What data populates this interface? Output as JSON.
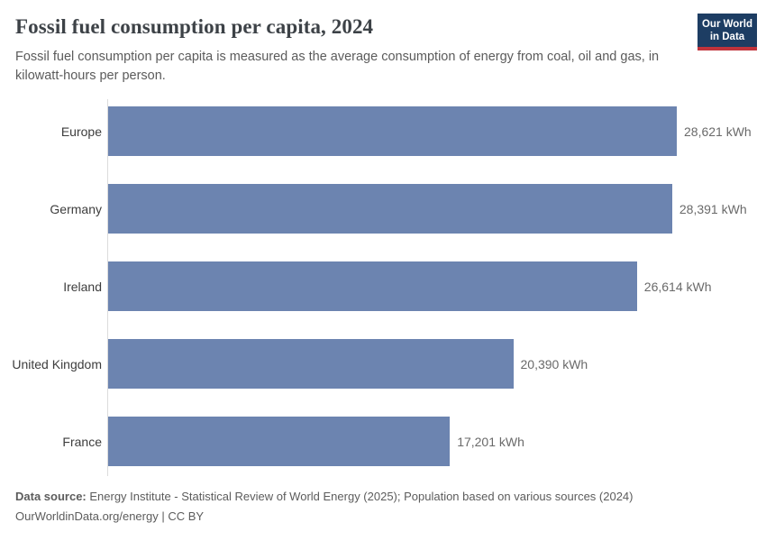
{
  "header": {
    "title": "Fossil fuel consumption per capita, 2024",
    "subtitle": "Fossil fuel consumption per capita is measured as the average consumption of energy from coal, oil and gas, in kilowatt-hours per person."
  },
  "logo": {
    "line1": "Our World",
    "line2": "in Data",
    "background_color": "#1d3d63",
    "accent_color": "#c0333b"
  },
  "chart_data": {
    "type": "bar",
    "orientation": "horizontal",
    "title": "Fossil fuel consumption per capita, 2024",
    "unit": "kWh",
    "categories": [
      "Europe",
      "Germany",
      "Ireland",
      "United Kingdom",
      "France"
    ],
    "values": [
      28621,
      28391,
      26614,
      20390,
      17201
    ],
    "value_labels": [
      "28,621 kWh",
      "28,391 kWh",
      "26,614 kWh",
      "20,390 kWh",
      "17,201 kWh"
    ],
    "xlim": [
      0,
      28621
    ],
    "grid": false,
    "legend": false,
    "bar_color": "#6c84b0",
    "axis_line_color": "#dcdcdc"
  },
  "footer": {
    "source_label": "Data source:",
    "source_text": " Energy Institute - Statistical Review of World Energy (2025); Population based on various sources (2024)",
    "link_line": "OurWorldinData.org/energy | CC BY"
  }
}
